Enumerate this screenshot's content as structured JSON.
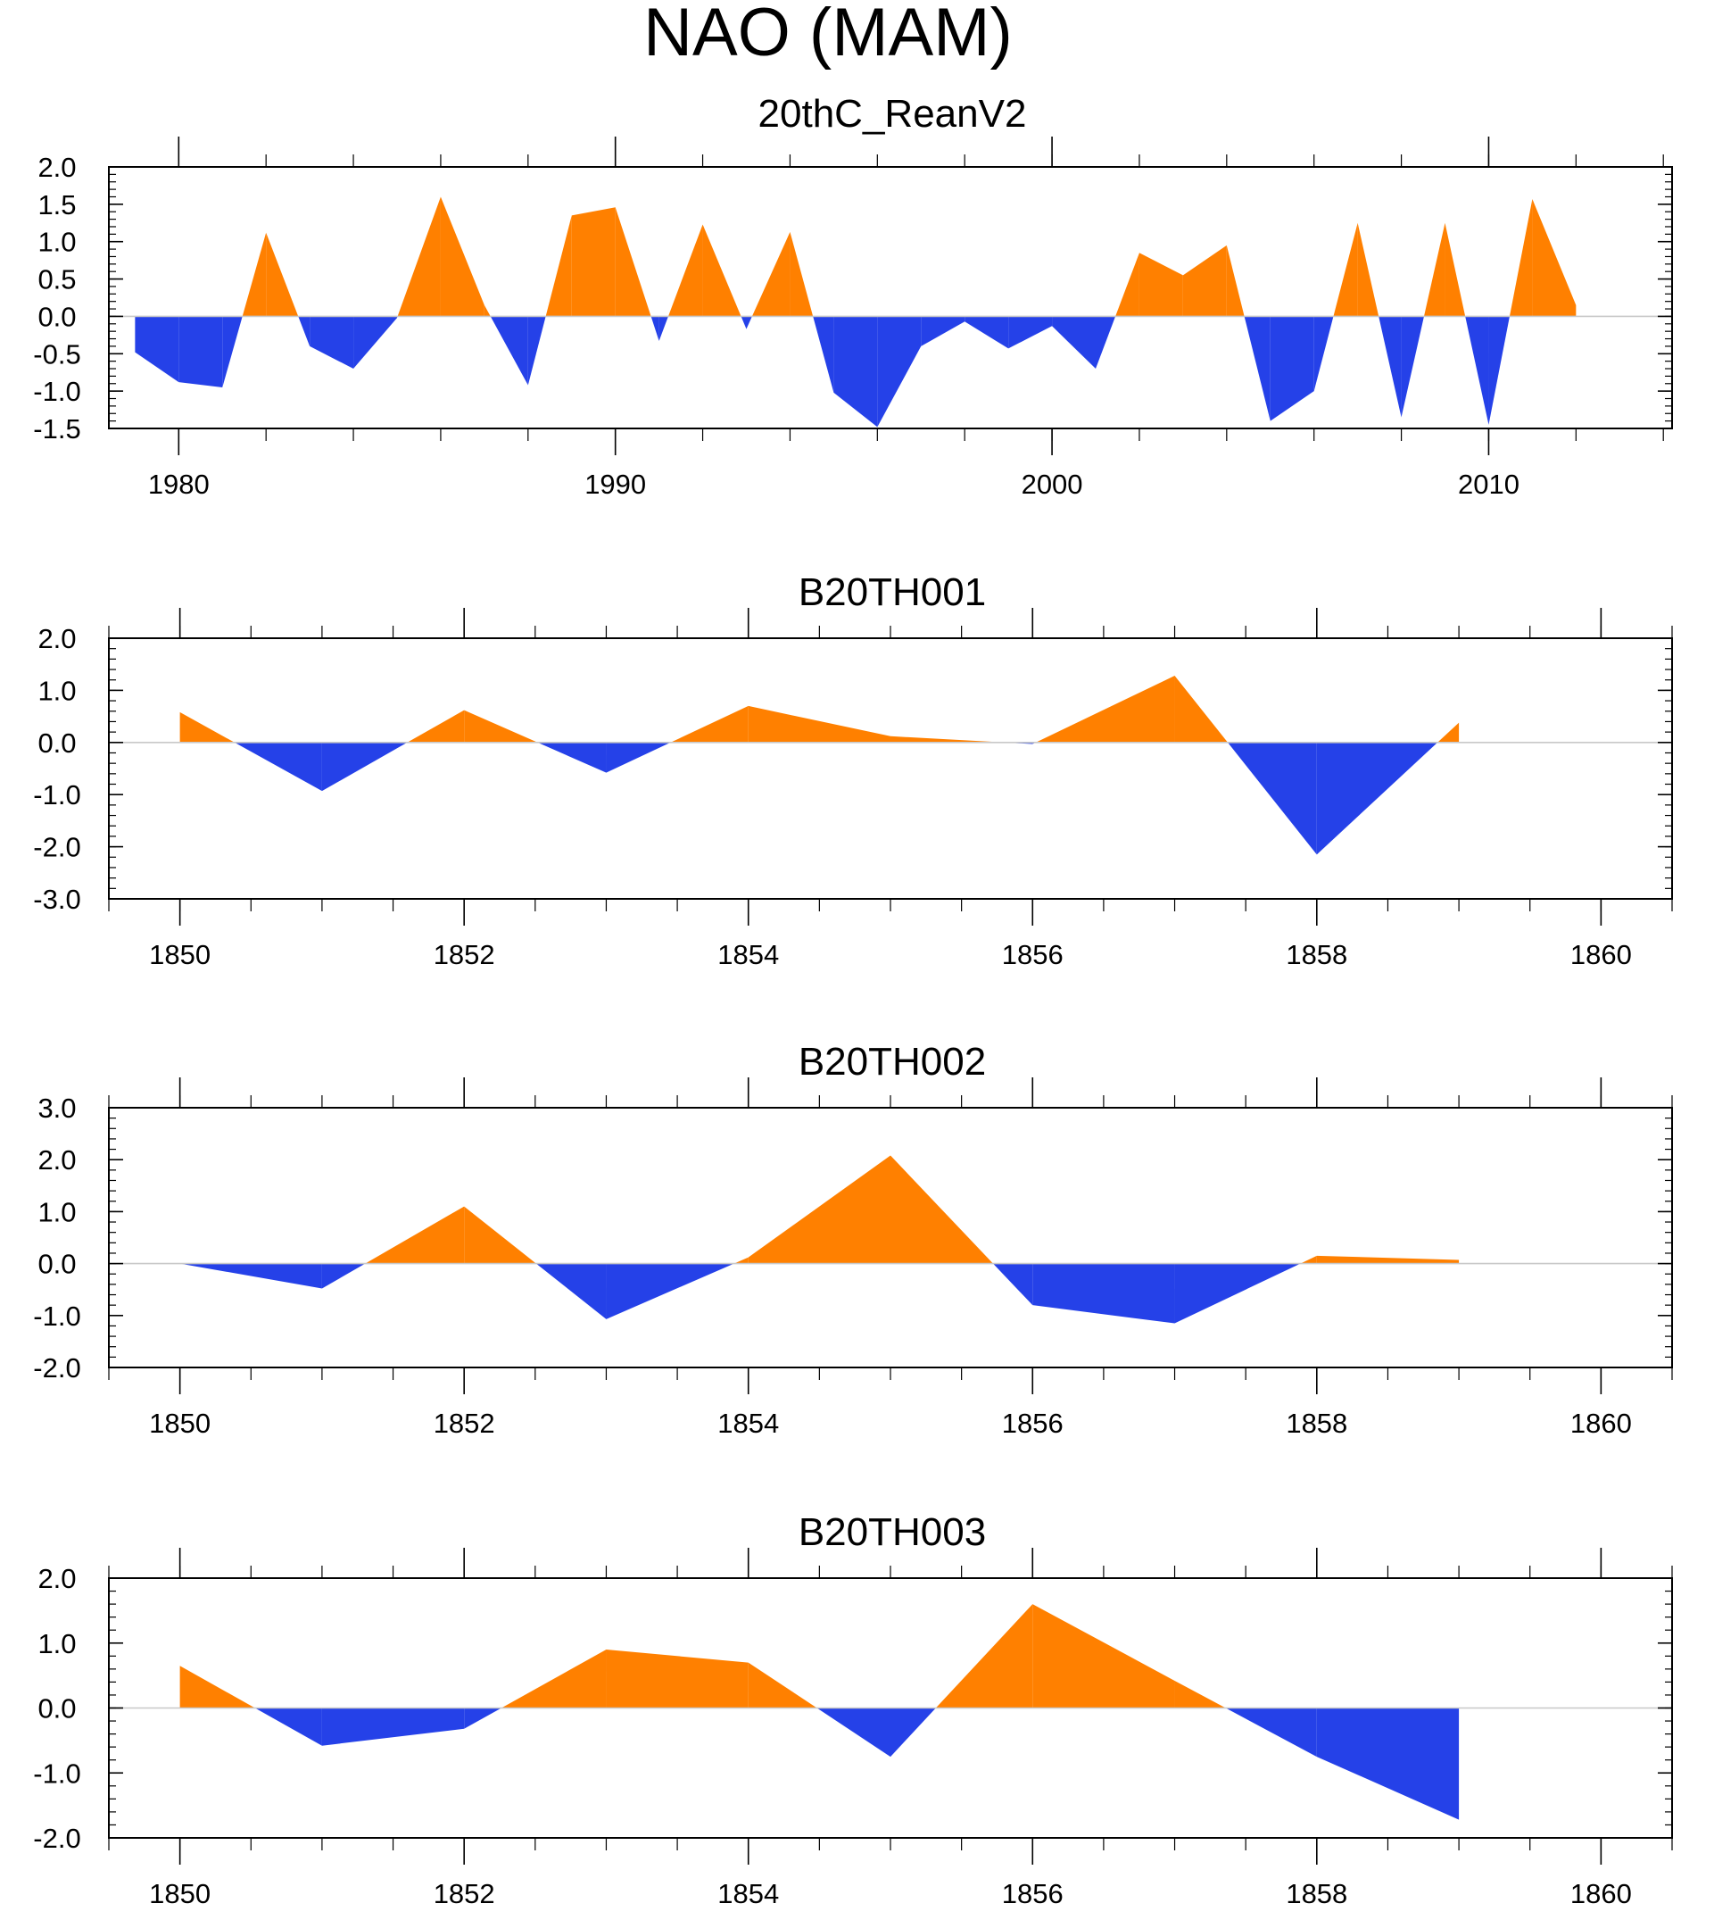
{
  "title": "NAO (MAM)",
  "colors": {
    "positive": "#ff8000",
    "negative": "#2541e8",
    "zero_line": "#c8c8c8"
  },
  "chart_data": [
    {
      "type": "area",
      "title": "20thC_ReanV2",
      "x": [
        1979,
        1980,
        1981,
        1982,
        1983,
        1984,
        1985,
        1986,
        1987,
        1988,
        1989,
        1990,
        1991,
        1992,
        1993,
        1994,
        1995,
        1996,
        1997,
        1998,
        1999,
        2000,
        2001,
        2002,
        2003,
        2004,
        2005,
        2006,
        2007,
        2008,
        2009,
        2010,
        2011,
        2012
      ],
      "values": [
        -0.48,
        -0.88,
        -0.95,
        1.12,
        -0.4,
        -0.7,
        -0.02,
        1.6,
        0.15,
        -0.92,
        1.35,
        1.46,
        -0.33,
        1.23,
        -0.17,
        1.13,
        -1.02,
        -1.48,
        -0.4,
        -0.07,
        -0.43,
        -0.13,
        -0.7,
        0.85,
        0.55,
        0.95,
        -1.4,
        -1.0,
        1.25,
        -1.35,
        1.25,
        -1.45,
        1.57,
        0.15
      ],
      "xlim": [
        1978.4,
        2014.2
      ],
      "ylim": [
        -1.5,
        2.0
      ],
      "xticks": [
        1980,
        1990,
        2000,
        2010
      ],
      "xtick_labels": [
        "1980",
        "1990",
        "2000",
        "2010"
      ],
      "xminor_step": 2,
      "yticks": [
        2.0,
        1.5,
        1.0,
        0.5,
        0.0,
        -0.5,
        -1.0,
        -1.5
      ],
      "ytick_labels": [
        "2.0",
        "1.5",
        "1.0",
        "0.5",
        "0.0",
        "-0.5",
        "-1.0",
        "-1.5"
      ],
      "yminor_step": 0.1
    },
    {
      "type": "area",
      "title": "B20TH001",
      "x": [
        1850,
        1851,
        1852,
        1853,
        1854,
        1855,
        1856,
        1857,
        1858,
        1859
      ],
      "values": [
        0.58,
        -0.93,
        0.62,
        -0.58,
        0.7,
        0.12,
        -0.03,
        1.28,
        -2.15,
        0.38
      ],
      "xlim": [
        1849.5,
        1860.5
      ],
      "ylim": [
        -3.0,
        2.0
      ],
      "xticks": [
        1850,
        1852,
        1854,
        1856,
        1858,
        1860
      ],
      "xtick_labels": [
        "1850",
        "1852",
        "1854",
        "1856",
        "1858",
        "1860"
      ],
      "xminor_step": 0.5,
      "yticks": [
        2.0,
        1.0,
        0.0,
        -1.0,
        -2.0,
        -3.0
      ],
      "ytick_labels": [
        "2.0",
        "1.0",
        "0.0",
        "-1.0",
        "-2.0",
        "-3.0"
      ],
      "yminor_step": 0.2
    },
    {
      "type": "area",
      "title": "B20TH002",
      "x": [
        1850,
        1851,
        1852,
        1853,
        1854,
        1855,
        1856,
        1857,
        1858,
        1859
      ],
      "values": [
        0.0,
        -0.48,
        1.1,
        -1.07,
        0.12,
        2.08,
        -0.8,
        -1.15,
        0.15,
        0.07
      ],
      "xlim": [
        1849.5,
        1860.5
      ],
      "ylim": [
        -2.0,
        3.0
      ],
      "xticks": [
        1850,
        1852,
        1854,
        1856,
        1858,
        1860
      ],
      "xtick_labels": [
        "1850",
        "1852",
        "1854",
        "1856",
        "1858",
        "1860"
      ],
      "xminor_step": 0.5,
      "yticks": [
        3.0,
        2.0,
        1.0,
        0.0,
        -1.0,
        -2.0
      ],
      "ytick_labels": [
        "3.0",
        "2.0",
        "1.0",
        "0.0",
        "-1.0",
        "-2.0"
      ],
      "yminor_step": 0.2
    },
    {
      "type": "area",
      "title": "B20TH003",
      "x": [
        1850,
        1851,
        1852,
        1853,
        1854,
        1855,
        1856,
        1857,
        1858,
        1859
      ],
      "values": [
        0.65,
        -0.58,
        -0.32,
        0.9,
        0.7,
        -0.75,
        1.6,
        0.42,
        -0.75,
        -1.72
      ],
      "xlim": [
        1849.5,
        1860.5
      ],
      "ylim": [
        -2.0,
        2.0
      ],
      "xticks": [
        1850,
        1852,
        1854,
        1856,
        1858,
        1860
      ],
      "xtick_labels": [
        "1850",
        "1852",
        "1854",
        "1856",
        "1858",
        "1860"
      ],
      "xminor_step": 0.5,
      "yticks": [
        2.0,
        1.0,
        0.0,
        -1.0,
        -2.0
      ],
      "ytick_labels": [
        "2.0",
        "1.0",
        "0.0",
        "-1.0",
        "-2.0"
      ],
      "yminor_step": 0.2
    }
  ]
}
